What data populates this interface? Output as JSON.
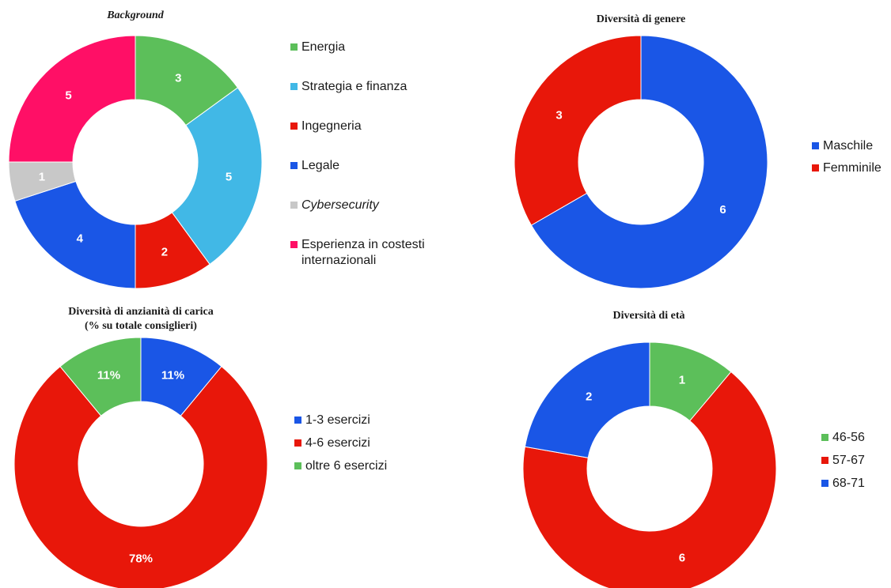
{
  "chart_data": [
    {
      "type": "pie",
      "title": "Background",
      "categories": [
        "Energia",
        "Strategia e finanza",
        "Ingegneria",
        "Legale",
        "Cybersecurity",
        "Esperienza in costesti internazionali"
      ],
      "values": [
        3,
        5,
        2,
        4,
        1,
        5
      ],
      "data_labels": [
        "3",
        "5",
        "2",
        "4",
        "1",
        "5"
      ],
      "colors": [
        "#5cbf5a",
        "#41b8e6",
        "#e8170a",
        "#1a56e6",
        "#c8c8c8",
        "#ff0f66"
      ],
      "legend_position": "right",
      "donut": true
    },
    {
      "type": "pie",
      "title": "Diversità di genere",
      "categories": [
        "Maschile",
        "Femminile"
      ],
      "values": [
        6,
        3
      ],
      "data_labels": [
        "6",
        "3"
      ],
      "colors": [
        "#1a56e6",
        "#e8170a"
      ],
      "legend_position": "right",
      "donut": true
    },
    {
      "type": "pie",
      "title": "Diversità di anzianità di carica\n(% su totale consiglieri)",
      "categories": [
        "1-3 esercizi",
        "4-6 esercizi",
        "oltre 6 esercizi"
      ],
      "values": [
        11,
        78,
        11
      ],
      "data_labels": [
        "11%",
        "78%",
        "11%"
      ],
      "colors": [
        "#1a56e6",
        "#e8170a",
        "#5cbf5a"
      ],
      "legend_position": "right",
      "donut": true
    },
    {
      "type": "pie",
      "title": "Diversità di età",
      "categories": [
        "46-56",
        "57-67",
        "68-71"
      ],
      "values": [
        1,
        6,
        2
      ],
      "data_labels": [
        "1",
        "6",
        "2"
      ],
      "colors": [
        "#5cbf5a",
        "#e8170a",
        "#1a56e6"
      ],
      "legend_position": "right",
      "donut": true
    }
  ]
}
